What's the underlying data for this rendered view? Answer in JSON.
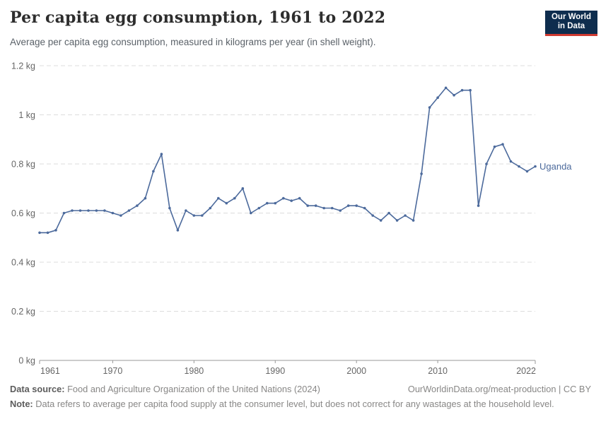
{
  "header": {
    "title": "Per capita egg consumption, 1961 to 2022",
    "subtitle": "Average per capita egg consumption, measured in kilograms per year (in shell weight)."
  },
  "logo": {
    "line1": "Our World",
    "line2": "in Data",
    "bg_color": "#0e2d4e",
    "accent_color": "#cf3a31"
  },
  "chart_data": {
    "type": "line",
    "title": "Per capita egg consumption, 1961 to 2022",
    "xlabel": "",
    "ylabel": "",
    "xlim": [
      1961,
      2022
    ],
    "ylim": [
      0,
      1.2
    ],
    "xticks": [
      1961,
      1970,
      1980,
      1990,
      2000,
      2010,
      2022
    ],
    "yticks": [
      0,
      0.2,
      0.4,
      0.6,
      0.8,
      1,
      1.2
    ],
    "ytick_suffix": " kg",
    "grid": "horizontal-dashed",
    "grid_color": "#dddddd",
    "axis_color": "#999999",
    "tick_label_color": "#666666",
    "legend_position": "end-of-line-label",
    "series": [
      {
        "name": "Uganda",
        "color": "#4C6A9C",
        "years": [
          1961,
          1962,
          1963,
          1964,
          1965,
          1966,
          1967,
          1968,
          1969,
          1970,
          1971,
          1972,
          1973,
          1974,
          1975,
          1976,
          1977,
          1978,
          1979,
          1980,
          1981,
          1982,
          1983,
          1984,
          1985,
          1986,
          1987,
          1988,
          1989,
          1990,
          1991,
          1992,
          1993,
          1994,
          1995,
          1996,
          1997,
          1998,
          1999,
          2000,
          2001,
          2002,
          2003,
          2004,
          2005,
          2006,
          2007,
          2008,
          2009,
          2010,
          2011,
          2012,
          2013,
          2014,
          2015,
          2016,
          2017,
          2018,
          2019,
          2020,
          2021,
          2022
        ],
        "values": [
          0.52,
          0.52,
          0.53,
          0.6,
          0.61,
          0.61,
          0.61,
          0.61,
          0.61,
          0.6,
          0.59,
          0.61,
          0.63,
          0.66,
          0.77,
          0.84,
          0.62,
          0.53,
          0.61,
          0.59,
          0.59,
          0.62,
          0.66,
          0.64,
          0.66,
          0.7,
          0.6,
          0.62,
          0.64,
          0.64,
          0.66,
          0.65,
          0.66,
          0.63,
          0.63,
          0.62,
          0.62,
          0.61,
          0.63,
          0.63,
          0.62,
          0.59,
          0.57,
          0.6,
          0.57,
          0.59,
          0.57,
          0.76,
          1.03,
          1.07,
          1.11,
          1.08,
          1.1,
          1.1,
          0.63,
          0.8,
          0.87,
          0.88,
          0.81,
          0.79,
          0.77,
          0.79
        ]
      }
    ]
  },
  "footer": {
    "source_label": "Data source:",
    "source_text": "Food and Agriculture Organization of the United Nations (2024)",
    "link_text": "OurWorldinData.org/meat-production | CC BY",
    "note_label": "Note:",
    "note_text": "Data refers to average per capita food supply at the consumer level, but does not correct for any wastages at the household level."
  }
}
